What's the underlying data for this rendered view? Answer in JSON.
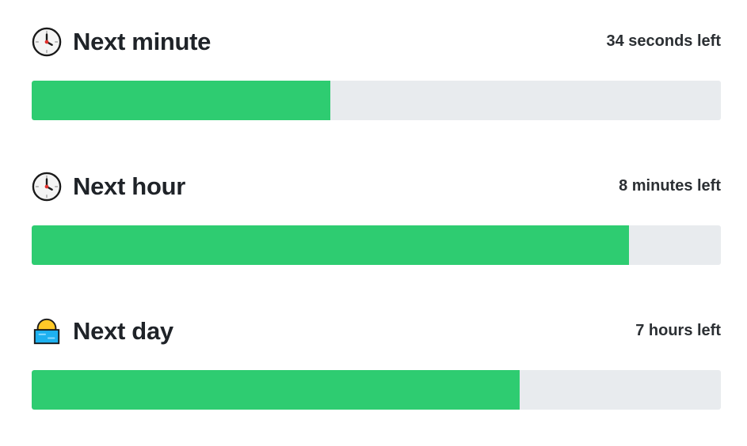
{
  "colors": {
    "progress_fill": "#2ecc71",
    "progress_track": "#e8ebee",
    "text": "#1f2328"
  },
  "timers": [
    {
      "icon": "clock-icon",
      "title": "Next minute",
      "remaining": "34 seconds left",
      "progress_fraction": 0.433
    },
    {
      "icon": "clock-icon",
      "title": "Next hour",
      "remaining": "8 minutes left",
      "progress_fraction": 0.867
    },
    {
      "icon": "sunrise-icon",
      "title": "Next day",
      "remaining": "7 hours left",
      "progress_fraction": 0.708
    }
  ]
}
